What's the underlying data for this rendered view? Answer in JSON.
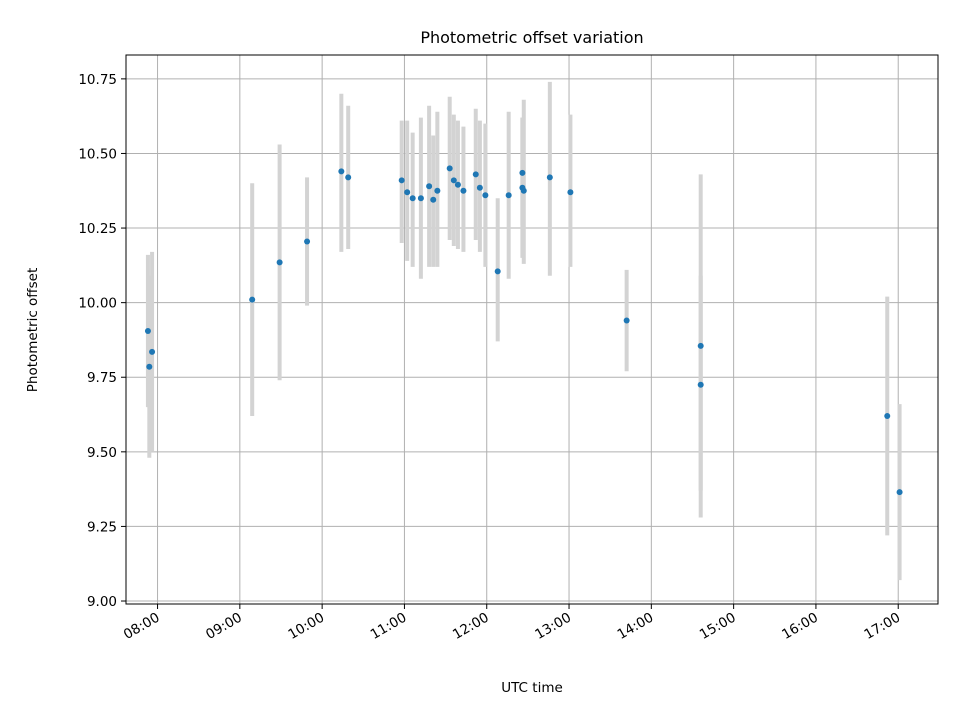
{
  "chart_data": {
    "type": "scatter",
    "title": "Photometric offset variation",
    "xlabel": "UTC time",
    "ylabel": "Photometric offset",
    "x_unit": "time (HH:MM UTC)",
    "xlim": [
      "07:37",
      "17:29"
    ],
    "ylim": [
      8.99,
      10.83
    ],
    "x_ticks": [
      "08:00",
      "09:00",
      "10:00",
      "11:00",
      "12:00",
      "13:00",
      "14:00",
      "15:00",
      "16:00",
      "17:00"
    ],
    "y_ticks": [
      "9.00",
      "9.25",
      "9.50",
      "9.75",
      "10.00",
      "10.25",
      "10.50",
      "10.75"
    ],
    "grid": true,
    "legend": "none",
    "colors": {
      "points": "#1f77b4",
      "errorbars": "#d3d3d3",
      "grid": "#b0b0b0"
    },
    "series": [
      {
        "points": [
          {
            "x": "07:53",
            "y": 9.905,
            "low": 9.65,
            "high": 10.16
          },
          {
            "x": "07:54",
            "y": 9.785,
            "low": 9.48,
            "high": 10.09
          },
          {
            "x": "07:56",
            "y": 9.835,
            "low": 9.5,
            "high": 10.17
          },
          {
            "x": "09:09",
            "y": 10.01,
            "low": 9.62,
            "high": 10.4
          },
          {
            "x": "09:29",
            "y": 10.135,
            "low": 9.74,
            "high": 10.53
          },
          {
            "x": "09:49",
            "y": 10.205,
            "low": 9.99,
            "high": 10.42
          },
          {
            "x": "10:14",
            "y": 10.44,
            "low": 10.17,
            "high": 10.7
          },
          {
            "x": "10:19",
            "y": 10.42,
            "low": 10.18,
            "high": 10.66
          },
          {
            "x": "10:58",
            "y": 10.41,
            "low": 10.2,
            "high": 10.61
          },
          {
            "x": "11:02",
            "y": 10.37,
            "low": 10.14,
            "high": 10.61
          },
          {
            "x": "11:06",
            "y": 10.35,
            "low": 10.12,
            "high": 10.57
          },
          {
            "x": "11:12",
            "y": 10.35,
            "low": 10.08,
            "high": 10.62
          },
          {
            "x": "11:18",
            "y": 10.39,
            "low": 10.12,
            "high": 10.66
          },
          {
            "x": "11:21",
            "y": 10.345,
            "low": 10.12,
            "high": 10.56
          },
          {
            "x": "11:24",
            "y": 10.375,
            "low": 10.12,
            "high": 10.64
          },
          {
            "x": "11:33",
            "y": 10.45,
            "low": 10.21,
            "high": 10.69
          },
          {
            "x": "11:36",
            "y": 10.41,
            "low": 10.19,
            "high": 10.63
          },
          {
            "x": "11:39",
            "y": 10.395,
            "low": 10.18,
            "high": 10.61
          },
          {
            "x": "11:43",
            "y": 10.375,
            "low": 10.17,
            "high": 10.59
          },
          {
            "x": "11:52",
            "y": 10.43,
            "low": 10.21,
            "high": 10.65
          },
          {
            "x": "11:55",
            "y": 10.385,
            "low": 10.17,
            "high": 10.61
          },
          {
            "x": "11:59",
            "y": 10.36,
            "low": 10.12,
            "high": 10.6
          },
          {
            "x": "12:08",
            "y": 10.105,
            "low": 9.87,
            "high": 10.35
          },
          {
            "x": "12:16",
            "y": 10.36,
            "low": 10.08,
            "high": 10.64
          },
          {
            "x": "12:26",
            "y": 10.435,
            "low": 10.26,
            "high": 10.62
          },
          {
            "x": "12:26",
            "y": 10.385,
            "low": 10.15,
            "high": 10.62
          },
          {
            "x": "12:27",
            "y": 10.375,
            "low": 10.13,
            "high": 10.68
          },
          {
            "x": "12:46",
            "y": 10.42,
            "low": 10.09,
            "high": 10.74
          },
          {
            "x": "13:01",
            "y": 10.37,
            "low": 10.12,
            "high": 10.63
          },
          {
            "x": "13:42",
            "y": 9.94,
            "low": 9.77,
            "high": 10.11
          },
          {
            "x": "14:36",
            "y": 9.855,
            "low": 9.28,
            "high": 10.43
          },
          {
            "x": "14:36",
            "y": 9.725,
            "low": 9.37,
            "high": 10.09
          },
          {
            "x": "16:52",
            "y": 9.62,
            "low": 9.22,
            "high": 10.02
          },
          {
            "x": "17:01",
            "y": 9.365,
            "low": 9.07,
            "high": 9.66
          }
        ]
      }
    ]
  }
}
